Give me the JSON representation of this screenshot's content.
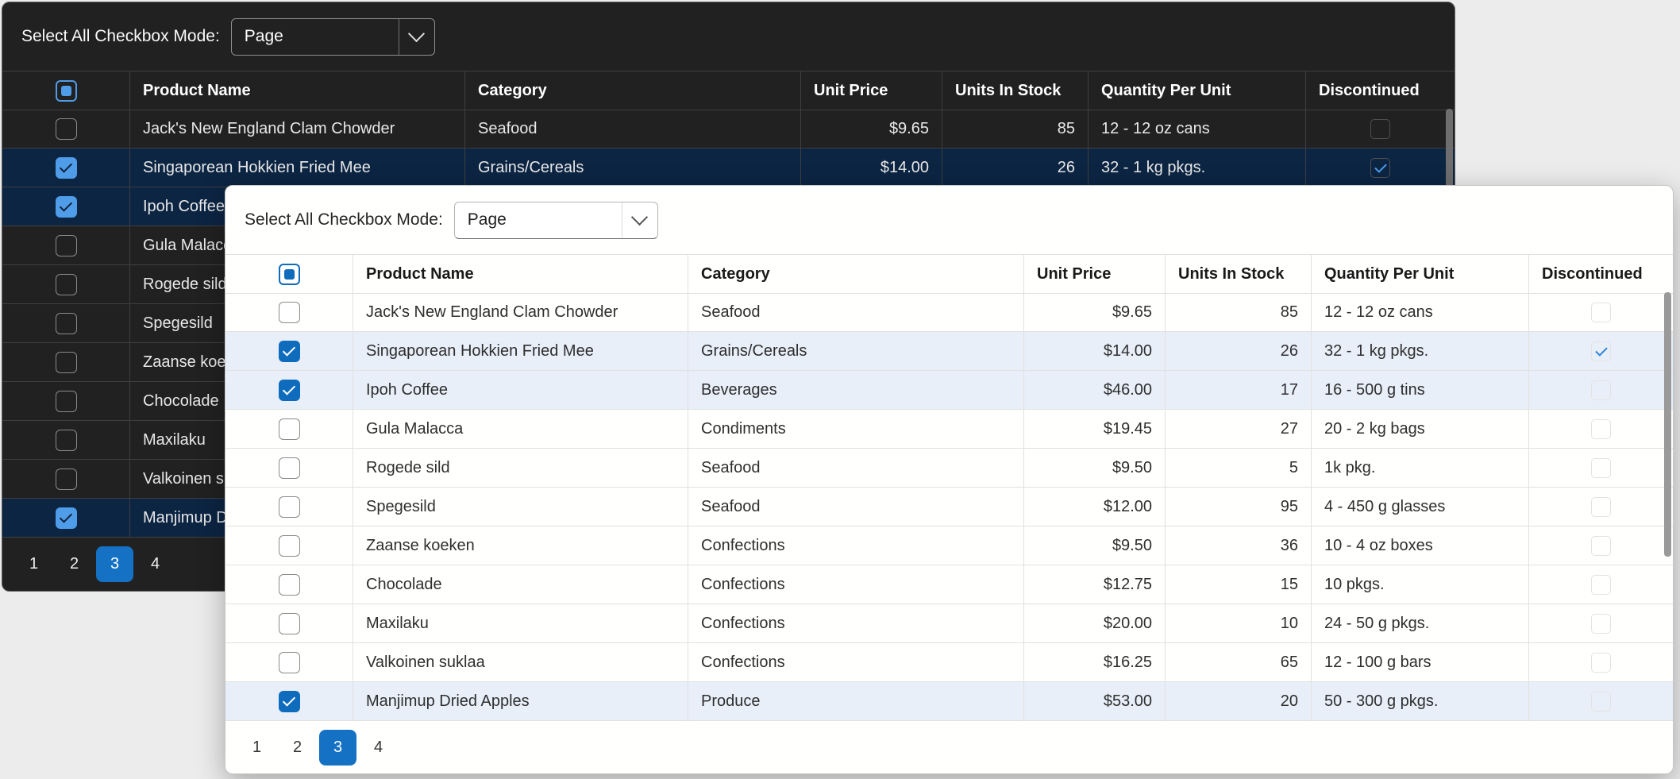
{
  "page": {
    "background": "#ececec"
  },
  "toolbar": {
    "label": "Select All Checkbox Mode:",
    "mode_value": "Page"
  },
  "grid": {
    "columns": [
      "Product Name",
      "Category",
      "Unit Price",
      "Units In Stock",
      "Quantity Per Unit",
      "Discontinued"
    ],
    "rows": [
      {
        "product": "Jack's New England Clam Chowder",
        "category": "Seafood",
        "unit_price": "$9.65",
        "units_in_stock": "85",
        "quantity_per_unit": "12 - 12 oz cans",
        "selected": false,
        "discontinued": false
      },
      {
        "product": "Singaporean Hokkien Fried Mee",
        "category": "Grains/Cereals",
        "unit_price": "$14.00",
        "units_in_stock": "26",
        "quantity_per_unit": "32 - 1 kg pkgs.",
        "selected": true,
        "discontinued": true
      },
      {
        "product": "Ipoh Coffee",
        "category": "Beverages",
        "unit_price": "$46.00",
        "units_in_stock": "17",
        "quantity_per_unit": "16 - 500 g tins",
        "selected": true,
        "discontinued": false
      },
      {
        "product": "Gula Malacca",
        "category": "Condiments",
        "unit_price": "$19.45",
        "units_in_stock": "27",
        "quantity_per_unit": "20 - 2 kg bags",
        "selected": false,
        "discontinued": false
      },
      {
        "product": "Rogede sild",
        "category": "Seafood",
        "unit_price": "$9.50",
        "units_in_stock": "5",
        "quantity_per_unit": "1k pkg.",
        "selected": false,
        "discontinued": false
      },
      {
        "product": "Spegesild",
        "category": "Seafood",
        "unit_price": "$12.00",
        "units_in_stock": "95",
        "quantity_per_unit": "4 - 450 g glasses",
        "selected": false,
        "discontinued": false
      },
      {
        "product": "Zaanse koeken",
        "category": "Confections",
        "unit_price": "$9.50",
        "units_in_stock": "36",
        "quantity_per_unit": "10 - 4 oz boxes",
        "selected": false,
        "discontinued": false
      },
      {
        "product": "Chocolade",
        "category": "Confections",
        "unit_price": "$12.75",
        "units_in_stock": "15",
        "quantity_per_unit": "10 pkgs.",
        "selected": false,
        "discontinued": false
      },
      {
        "product": "Maxilaku",
        "category": "Confections",
        "unit_price": "$20.00",
        "units_in_stock": "10",
        "quantity_per_unit": "24 - 50 g pkgs.",
        "selected": false,
        "discontinued": false
      },
      {
        "product": "Valkoinen suklaa",
        "category": "Confections",
        "unit_price": "$16.25",
        "units_in_stock": "65",
        "quantity_per_unit": "12 - 100 g bars",
        "selected": false,
        "discontinued": false
      },
      {
        "product": "Manjimup Dried Apples",
        "category": "Produce",
        "unit_price": "$53.00",
        "units_in_stock": "20",
        "quantity_per_unit": "50 - 300 g pkgs.",
        "selected": true,
        "discontinued": false
      }
    ]
  },
  "pager": {
    "pages": [
      "1",
      "2",
      "3",
      "4"
    ],
    "current": "3"
  },
  "colors": {
    "accent_light": "#0f6cbd",
    "accent_dark": "#4f9ce8",
    "selected_row_light": "#e8eff9",
    "selected_row_dark": "#0c2543",
    "pager_active": "#1471c4"
  }
}
